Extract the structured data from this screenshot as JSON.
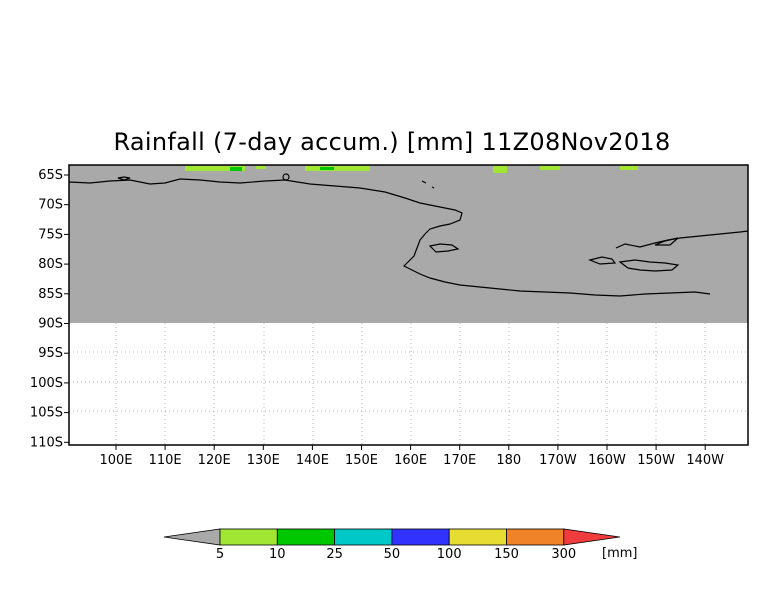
{
  "title": "Rainfall (7-day accum.) [mm] 11Z08Nov2018",
  "map": {
    "longitude_labels": [
      "100E",
      "110E",
      "120E",
      "130E",
      "140E",
      "150E",
      "160E",
      "170E",
      "180",
      "170W",
      "160W",
      "150W",
      "140W"
    ],
    "latitude_labels": [
      "65S",
      "70S",
      "75S",
      "80S",
      "85S",
      "90S",
      "95S",
      "100S",
      "105S",
      "110S"
    ],
    "land_color": "#a9a9a9",
    "background_color": "#ffffff"
  },
  "colorbar": {
    "unit_label": "[mm]",
    "levels": [
      "5",
      "10",
      "25",
      "50",
      "100",
      "150",
      "300"
    ],
    "colors": [
      "#a9a9a9",
      "#a0e632",
      "#00c800",
      "#00c8c8",
      "#3232ff",
      "#e6dc32",
      "#f08228",
      "#f03c3c"
    ]
  }
}
